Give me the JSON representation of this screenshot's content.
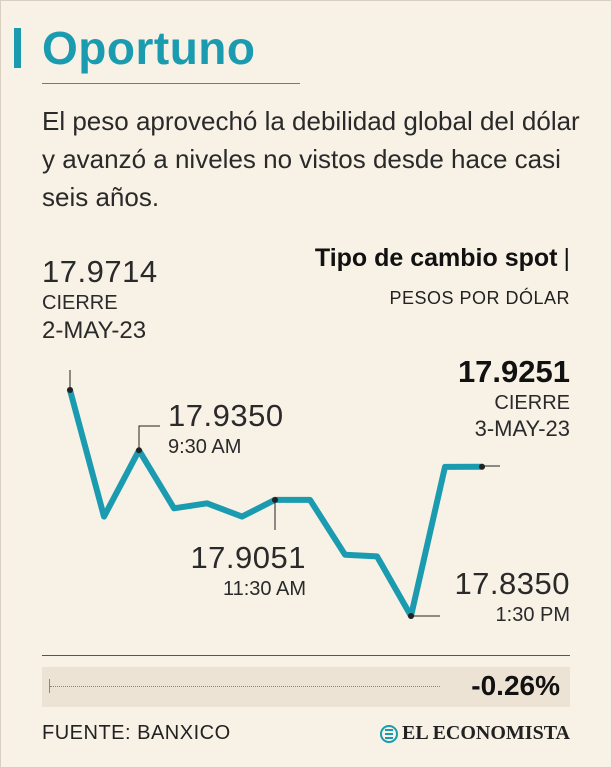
{
  "header": {
    "title": "Oportuno",
    "subtitle": "El peso aprovechó la debilidad global del dólar y avanzó a niveles no vistos desde hace casi seis años."
  },
  "chart_data": {
    "type": "line",
    "title": "Tipo de cambio spot",
    "title_separator": "|",
    "units": "PESOS POR DÓLAR",
    "color": "#1a9bb0",
    "grid": false,
    "values": [
      17.9714,
      17.895,
      17.935,
      17.9,
      17.903,
      17.895,
      17.9051,
      17.9051,
      17.872,
      17.871,
      17.835,
      17.925,
      17.9251
    ],
    "annotations": [
      {
        "index": 0,
        "value": "17.9714",
        "label1": "CIERRE",
        "label2": "2-MAY-23"
      },
      {
        "index": 2,
        "value": "17.9350",
        "label1": "9:30 AM"
      },
      {
        "index": 6,
        "value": "17.9051",
        "label1": "11:30 AM"
      },
      {
        "index": 10,
        "value": "17.8350",
        "label1": "1:30 PM"
      },
      {
        "index": 12,
        "value": "17.9251",
        "label1": "CIERRE",
        "label2": "3-MAY-23"
      }
    ]
  },
  "footer": {
    "change": "-0.26%",
    "source": "FUENTE: BANXICO",
    "brand": "EL ECONOMISTA"
  }
}
